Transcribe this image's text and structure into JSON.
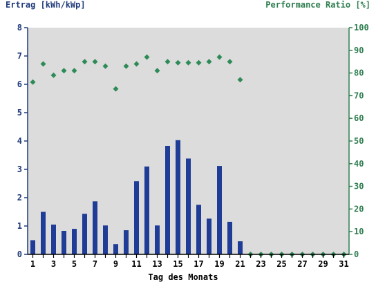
{
  "chart_data": {
    "type": "bar",
    "y_left_label": "Ertrag [kWh/kWp]",
    "y_right_label": "Performance Ratio [%]",
    "xlabel": "Tag des Monats",
    "x": [
      1,
      2,
      3,
      4,
      5,
      6,
      7,
      8,
      9,
      10,
      11,
      12,
      13,
      14,
      15,
      16,
      17,
      18,
      19,
      20,
      21,
      22,
      23,
      24,
      25,
      26,
      27,
      28,
      29,
      30,
      31
    ],
    "x_tick_labels": [
      "1",
      "3",
      "5",
      "7",
      "9",
      "11",
      "13",
      "15",
      "17",
      "19",
      "21",
      "23",
      "25",
      "27",
      "29",
      "31"
    ],
    "ylim_left": [
      0,
      8
    ],
    "ylim_right": [
      0,
      100
    ],
    "y_left_ticks": [
      0,
      1,
      2,
      3,
      4,
      5,
      6,
      7,
      8
    ],
    "y_right_ticks": [
      0,
      10,
      20,
      30,
      40,
      50,
      60,
      70,
      80,
      90,
      100
    ],
    "grid": false,
    "series": [
      {
        "name": "Ertrag [kWh/kWp]",
        "kind": "bar",
        "axis": "left",
        "values": [
          0.5,
          1.5,
          1.05,
          0.83,
          0.9,
          1.43,
          1.87,
          1.02,
          0.36,
          0.85,
          2.58,
          3.1,
          1.02,
          3.83,
          4.03,
          3.38,
          1.75,
          1.26,
          3.12,
          1.15,
          0.46,
          0,
          0,
          0,
          0,
          0,
          0,
          0,
          0,
          0,
          0
        ]
      },
      {
        "name": "Performance Ratio [%]",
        "kind": "scatter",
        "axis": "right",
        "values": [
          76,
          84,
          79,
          81,
          81,
          85,
          85,
          83,
          73,
          83,
          84,
          87,
          81,
          85,
          84.5,
          84.5,
          84.5,
          85,
          87,
          85,
          77,
          0,
          0,
          0,
          0,
          0,
          0,
          0,
          0,
          0,
          0
        ]
      }
    ],
    "colors": {
      "plot_background": "#dcdcdc",
      "bars": "#1f3c96",
      "markers": "#2e8b57",
      "left_axis": "#1f3a7a",
      "right_axis": "#2e7d4f"
    }
  }
}
